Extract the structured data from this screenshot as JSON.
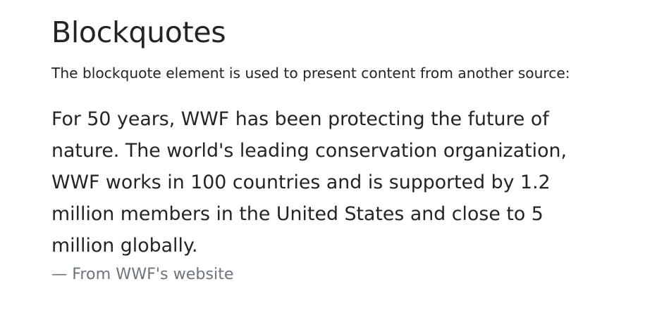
{
  "heading": "Blockquotes",
  "intro": "The blockquote element is used to present content from another source:",
  "blockquote": {
    "text": "For 50 years, WWF has been protecting the future of nature. The world's leading conservation organization, WWF works in 100 countries and is supported by 1.2 million members in the United States and close to 5 million globally.",
    "footer": "— From WWF's website"
  },
  "colors": {
    "text": "#212529",
    "muted": "#6c757d",
    "background": "#ffffff"
  }
}
